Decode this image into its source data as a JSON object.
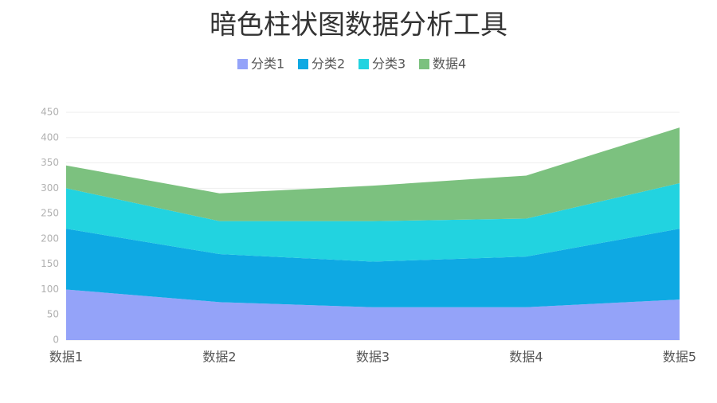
{
  "chart_data": {
    "type": "stacked-area",
    "title": "暗色柱状图数据分析工具",
    "categories": [
      "数据1",
      "数据2",
      "数据3",
      "数据4",
      "数据5"
    ],
    "series": [
      {
        "name": "分类1",
        "color": "#94a3f9",
        "values": [
          100,
          75,
          65,
          65,
          80
        ]
      },
      {
        "name": "分类2",
        "color": "#0ea9e3",
        "values": [
          120,
          95,
          90,
          100,
          140
        ]
      },
      {
        "name": "分类3",
        "color": "#22d3e0",
        "values": [
          80,
          65,
          80,
          75,
          90
        ]
      },
      {
        "name": "数据4",
        "color": "#7cc17f",
        "values": [
          45,
          55,
          70,
          85,
          110
        ]
      }
    ],
    "ylim": [
      0,
      450
    ],
    "yticks": [
      0,
      50,
      100,
      150,
      200,
      250,
      300,
      350,
      400,
      450
    ],
    "grid": true,
    "legend": "top"
  }
}
